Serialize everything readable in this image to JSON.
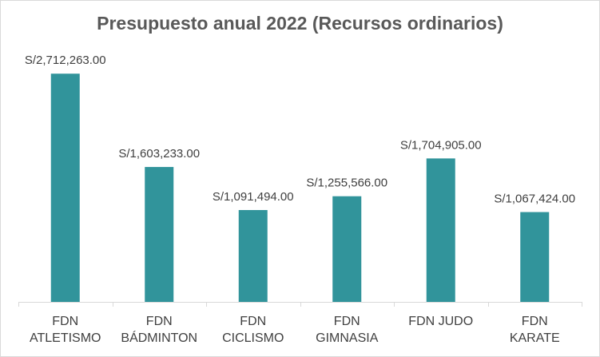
{
  "chart_data": {
    "type": "bar",
    "title": "Presupuesto anual 2022 (Recursos ordinarios)",
    "categories": [
      [
        "FDN",
        "ATLETISMO"
      ],
      [
        "FDN",
        "BÁDMINTON"
      ],
      [
        "FDN",
        "CICLISMO"
      ],
      [
        "FDN",
        "GIMNASIA"
      ],
      [
        "FDN JUDO"
      ],
      [
        "FDN",
        "KARATE"
      ]
    ],
    "values": [
      2712263.0,
      1603233.0,
      1091494.0,
      1255566.0,
      1704905.0,
      1067424.0
    ],
    "data_labels": [
      "S/2,712,263.00",
      "S/1,603,233.00",
      "S/1,091,494.00",
      "S/1,255,566.00",
      "S/1,704,905.00",
      "S/1,067,424.00"
    ],
    "bar_color": "#31949b",
    "axis_color": "#d9d9d9",
    "ylim": [
      0,
      2800000
    ],
    "grid": false,
    "legend": "none"
  }
}
